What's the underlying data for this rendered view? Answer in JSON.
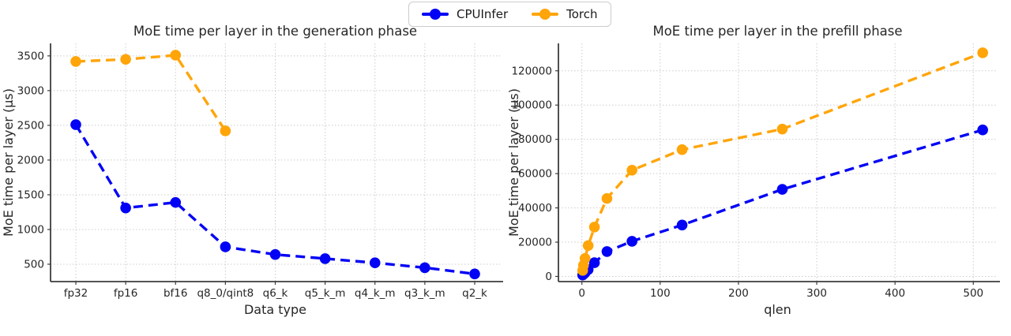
{
  "legend": {
    "items": [
      {
        "label": "CPUInfer",
        "color": "#0202F5"
      },
      {
        "label": "Torch",
        "color": "#FFA50A"
      }
    ]
  },
  "colors": {
    "cpuinfer": "#0202F5",
    "torch": "#FFA50A",
    "grid": "#cccccc",
    "spine": "#3c3c3c",
    "text": "#262626"
  },
  "chart_data": [
    {
      "id": "generation",
      "type": "line",
      "title": "MoE time per layer in the generation phase",
      "xlabel": "Data type",
      "ylabel": "MoE time per layer (µs)",
      "categories": [
        "fp32",
        "fp16",
        "bf16",
        "q8_0/qint8",
        "q6_k",
        "q5_k_m",
        "q4_k_m",
        "q3_k_m",
        "q2_k"
      ],
      "yticks": [
        500,
        1000,
        1500,
        2000,
        2500,
        3000,
        3500
      ],
      "ylim": [
        250,
        3680
      ],
      "grid": true,
      "line_style": "dashed",
      "marker": "circle",
      "legend_position": "top-center-outside",
      "series": [
        {
          "name": "CPUInfer",
          "color": "#0202F5",
          "values": [
            2510,
            1310,
            1390,
            750,
            640,
            580,
            520,
            450,
            360
          ]
        },
        {
          "name": "Torch",
          "color": "#FFA50A",
          "values": [
            3420,
            3450,
            3510,
            2420,
            null,
            null,
            null,
            null,
            null
          ]
        }
      ]
    },
    {
      "id": "prefill",
      "type": "line",
      "title": "MoE time per layer in the prefill phase",
      "xlabel": "qlen",
      "ylabel": "MoE time per layer (µs)",
      "x": [
        1,
        2,
        4,
        8,
        16,
        32,
        64,
        128,
        256,
        512
      ],
      "xticks": [
        0,
        100,
        200,
        300,
        400,
        500
      ],
      "xlim": [
        -30,
        530
      ],
      "yticks": [
        0,
        20000,
        40000,
        60000,
        80000,
        100000,
        120000
      ],
      "ylim": [
        -3000,
        136000
      ],
      "grid": true,
      "line_style": "dashed",
      "marker": "circle",
      "series": [
        {
          "name": "CPUInfer",
          "color": "#0202F5",
          "values": [
            800,
            1300,
            2100,
            4000,
            8000,
            14500,
            20500,
            30000,
            50800,
            85500
          ]
        },
        {
          "name": "Torch",
          "color": "#FFA50A",
          "values": [
            3500,
            6500,
            10500,
            18000,
            28800,
            45500,
            62000,
            74000,
            86000,
            130500
          ]
        }
      ]
    }
  ]
}
